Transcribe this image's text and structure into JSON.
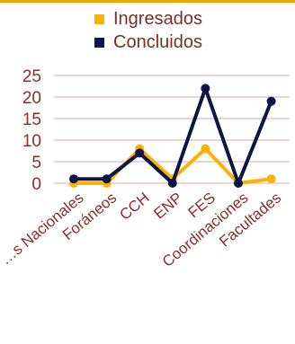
{
  "colors": {
    "accent": "#e7a800",
    "text": "#8a2f2b",
    "grid": "#d9aaa6"
  },
  "chart_data": {
    "type": "line",
    "title": "",
    "xlabel": "",
    "ylabel": "",
    "categories": [
      "…s Nacionales",
      "Foráneos",
      "CCH",
      "ENP",
      "FES",
      "Coordinaciones",
      "Facultades"
    ],
    "yticks": [
      0,
      5,
      10,
      15,
      20,
      25
    ],
    "ylim": [
      0,
      25
    ],
    "grid": true,
    "legend_position": "top",
    "series": [
      {
        "name": "Ingresados",
        "color": "#ffb000",
        "values": [
          0,
          0,
          8,
          1,
          8,
          0,
          1
        ]
      },
      {
        "name": "Concluidos",
        "color": "#0b1647",
        "values": [
          1,
          1,
          7,
          0,
          22,
          0,
          19
        ]
      }
    ]
  }
}
